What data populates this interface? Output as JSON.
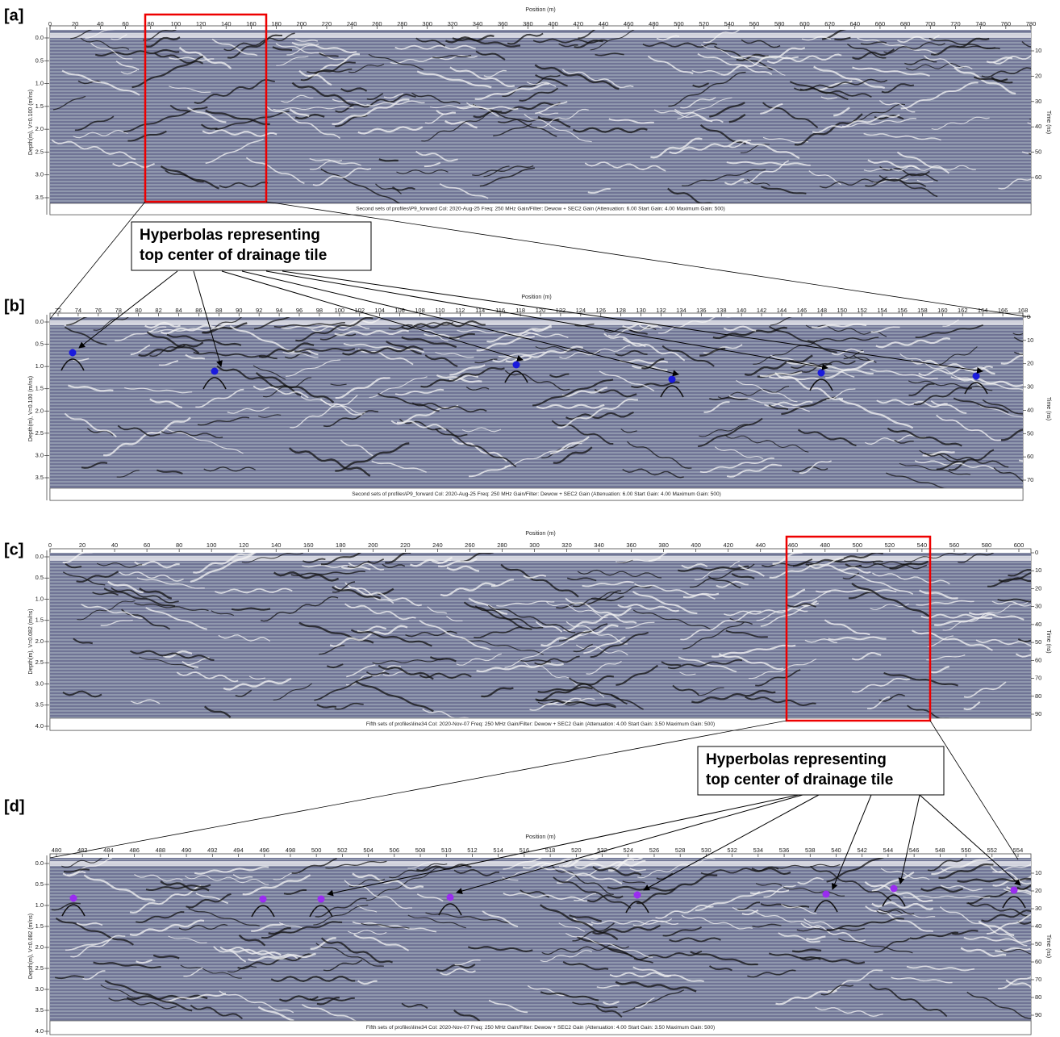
{
  "panels": [
    {
      "label": "[a]",
      "x_axis_title": "Position (m)",
      "xticks": [
        0,
        20,
        40,
        60,
        80,
        100,
        120,
        140,
        160,
        180,
        200,
        220,
        240,
        260,
        280,
        300,
        320,
        340,
        360,
        380,
        400,
        420,
        440,
        460,
        480,
        500,
        520,
        540,
        560,
        580,
        600,
        620,
        640,
        660,
        680,
        700,
        720,
        740,
        760,
        780
      ],
      "y_axis_title": "Depth(m), V=0.100 (m/ns)",
      "yticks": [
        "0.0",
        "0.5",
        "1.0",
        "1.5",
        "2.0",
        "2.5",
        "3.0",
        "3.5"
      ],
      "y2_axis_title": "Time (ns)",
      "y2ticks": [
        10,
        20,
        30,
        40,
        50,
        60
      ],
      "caption": "Second sets of profiles\\P9_forward  Col: 2020-Aug-25  Freq: 250 MHz  Gain/Filter: Dewow + SEC2 Gain (Attenuation: 6.00  Start Gain: 4.00  Maximum Gain: 500)"
    },
    {
      "label": "[b]",
      "x_axis_title": "Position (m)",
      "xticks": [
        72,
        74,
        76,
        78,
        80,
        82,
        84,
        86,
        88,
        90,
        92,
        94,
        96,
        98,
        100,
        102,
        104,
        106,
        108,
        110,
        112,
        114,
        116,
        118,
        120,
        122,
        124,
        126,
        128,
        130,
        132,
        134,
        136,
        138,
        140,
        142,
        144,
        146,
        148,
        150,
        152,
        154,
        156,
        158,
        160,
        162,
        164,
        166,
        168
      ],
      "y_axis_title": "Depth(m), V=0.100 (m/ns)",
      "yticks": [
        "0.0",
        "0.5",
        "1.0",
        "1.5",
        "2.0",
        "2.5",
        "3.0",
        "3.5"
      ],
      "y2_axis_title": "Time (ns)",
      "y2ticks": [
        0,
        10,
        20,
        30,
        40,
        50,
        60,
        70
      ],
      "caption": "Second sets of profiles\\P9_forward  Col: 2020-Aug-25  Freq: 250 MHz  Gain/Filter: Dewow + SEC2 Gain (Attenuation: 6.00  Start Gain: 4.00  Maximum Gain: 500)"
    },
    {
      "label": "[c]",
      "x_axis_title": "Position (m)",
      "xticks": [
        0,
        20,
        40,
        60,
        80,
        100,
        120,
        140,
        160,
        180,
        200,
        220,
        240,
        260,
        280,
        300,
        320,
        340,
        360,
        380,
        400,
        420,
        440,
        460,
        480,
        500,
        520,
        540,
        560,
        580,
        600
      ],
      "y_axis_title": "Depth(m), V=0.082 (m/ns)",
      "yticks": [
        "0.0",
        "0.5",
        "1.0",
        "1.5",
        "2.0",
        "2.5",
        "3.0",
        "3.5",
        "4.0"
      ],
      "y2_axis_title": "Time (ns)",
      "y2ticks": [
        0,
        10,
        20,
        30,
        40,
        50,
        60,
        70,
        80,
        90
      ],
      "caption": "Fifth sets of profiles\\line34  Col: 2020-Nov-07  Freq: 250 MHz  Gain/Filter: Dewow + SEC2 Gain (Attenuation: 4.00  Start Gain: 3.50  Maximum Gain: 500)"
    },
    {
      "label": "[d]",
      "x_axis_title": "Position (m)",
      "xticks": [
        480,
        482,
        484,
        486,
        488,
        490,
        492,
        494,
        496,
        498,
        500,
        502,
        504,
        506,
        508,
        510,
        512,
        514,
        516,
        518,
        520,
        522,
        524,
        526,
        528,
        530,
        532,
        534,
        536,
        538,
        540,
        542,
        544,
        546,
        548,
        550,
        552,
        554
      ],
      "y_axis_title": "Depth(m), V=0.082 (m/ns)",
      "yticks": [
        "0.0",
        "0.5",
        "1.0",
        "1.5",
        "2.0",
        "2.5",
        "3.0",
        "3.5",
        "4.0"
      ],
      "y2_axis_title": "Time (ns)",
      "y2ticks": [
        10,
        20,
        30,
        40,
        50,
        60,
        70,
        80,
        90
      ],
      "caption": "Fifth sets of profiles\\line34  Col: 2020-Nov-07  Freq: 250 MHz  Gain/Filter: Dewow + SEC2 Gain (Attenuation: 4.00  Start Gain: 3.50  Maximum Gain: 500)"
    }
  ],
  "annotations": [
    {
      "lines": [
        "Hyperbolas representing",
        "top center of drainage tile"
      ]
    },
    {
      "lines": [
        "Hyperbolas representing",
        "top center of drainage tile"
      ]
    }
  ]
}
